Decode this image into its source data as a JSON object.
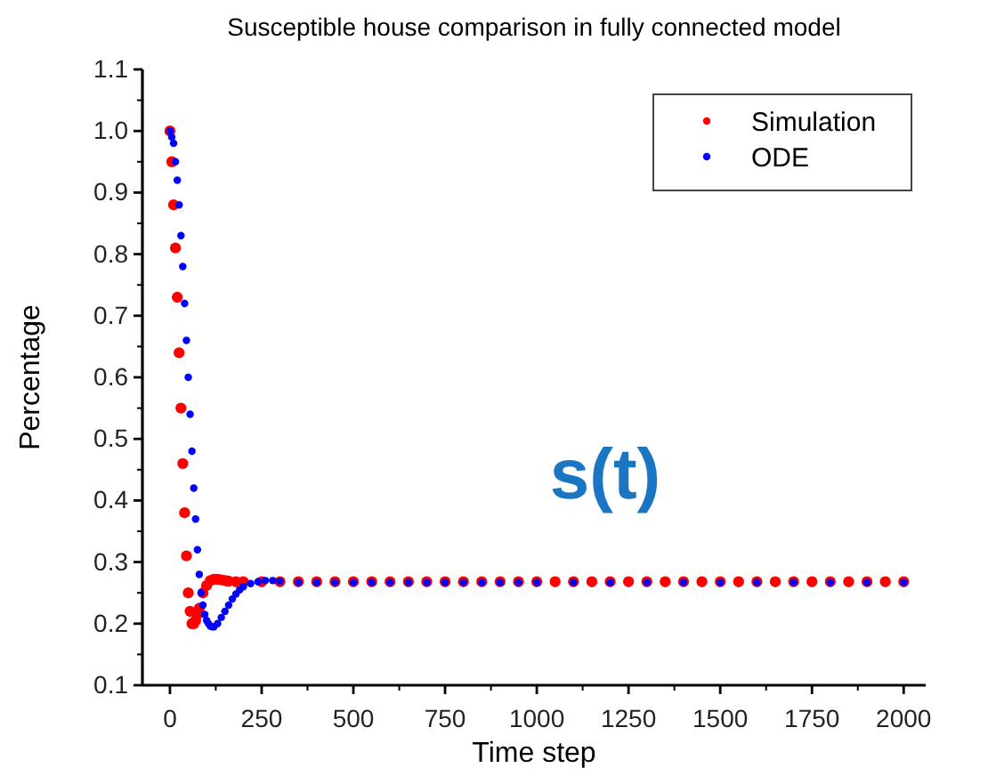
{
  "chart_data": {
    "type": "scatter",
    "title": "Susceptible house comparison in fully connected model",
    "xlabel": "Time step",
    "ylabel": "Percentage",
    "annotations": [
      "s(t)"
    ],
    "xlim": [
      -75,
      2060
    ],
    "xticks": [
      0,
      250,
      500,
      750,
      1000,
      1250,
      1500,
      1750,
      2000
    ],
    "ylim": [
      0.1,
      1.1
    ],
    "yticks": [
      {
        "value": 0.1,
        "label": "0.1"
      },
      {
        "value": 0.2,
        "label": "0.2"
      },
      {
        "value": 0.3,
        "label": "0.3"
      },
      {
        "value": 0.4,
        "label": "0.4"
      },
      {
        "value": 0.5,
        "label": "0.5"
      },
      {
        "value": 0.6,
        "label": "0.6"
      },
      {
        "value": 0.7,
        "label": "0.7"
      },
      {
        "value": 0.8,
        "label": "0.8"
      },
      {
        "value": 0.9,
        "label": "0.9"
      },
      {
        "value": 1.0,
        "label": "1.0"
      },
      {
        "value": 1.1,
        "label": "1.1"
      }
    ],
    "grid": false,
    "legend": "top right",
    "marker": "circle",
    "series": [
      {
        "name": "Simulation",
        "color": "#ff0000",
        "x": [
          0,
          5,
          10,
          15,
          20,
          25,
          30,
          35,
          40,
          45,
          50,
          55,
          60,
          65,
          70,
          75,
          80,
          90,
          100,
          110,
          120,
          130,
          140,
          150,
          160,
          180,
          200,
          250,
          300,
          350,
          400,
          450,
          500,
          550,
          600,
          650,
          700,
          750,
          800,
          850,
          900,
          950,
          1000,
          1050,
          1100,
          1150,
          1200,
          1250,
          1300,
          1350,
          1400,
          1450,
          1500,
          1550,
          1600,
          1650,
          1700,
          1750,
          1800,
          1850,
          1900,
          1950,
          2000
        ],
        "values": [
          1.0,
          0.95,
          0.88,
          0.81,
          0.73,
          0.64,
          0.55,
          0.46,
          0.38,
          0.31,
          0.25,
          0.22,
          0.2,
          0.2,
          0.205,
          0.215,
          0.225,
          0.25,
          0.262,
          0.27,
          0.272,
          0.272,
          0.271,
          0.27,
          0.269,
          0.268,
          0.268,
          0.268,
          0.268,
          0.268,
          0.268,
          0.268,
          0.268,
          0.268,
          0.268,
          0.268,
          0.268,
          0.268,
          0.268,
          0.268,
          0.268,
          0.268,
          0.268,
          0.268,
          0.268,
          0.268,
          0.268,
          0.268,
          0.268,
          0.268,
          0.268,
          0.268,
          0.268,
          0.268,
          0.268,
          0.268,
          0.268,
          0.268,
          0.268,
          0.268,
          0.268,
          0.268,
          0.268
        ]
      },
      {
        "name": "ODE",
        "color": "#0000ff",
        "x": [
          0,
          5,
          10,
          15,
          20,
          25,
          30,
          35,
          40,
          45,
          50,
          55,
          60,
          65,
          70,
          75,
          80,
          85,
          90,
          95,
          100,
          105,
          110,
          115,
          120,
          130,
          140,
          150,
          160,
          170,
          180,
          190,
          200,
          220,
          240,
          260,
          280,
          300,
          350,
          400,
          450,
          500,
          550,
          600,
          650,
          700,
          750,
          800,
          850,
          900,
          950,
          1000,
          1100,
          1200,
          1300,
          1400,
          1500,
          1600,
          1700,
          1800,
          1900,
          2000
        ],
        "values": [
          1.0,
          0.99,
          0.98,
          0.95,
          0.92,
          0.88,
          0.83,
          0.78,
          0.72,
          0.66,
          0.6,
          0.54,
          0.48,
          0.42,
          0.37,
          0.32,
          0.28,
          0.25,
          0.23,
          0.215,
          0.205,
          0.2,
          0.196,
          0.195,
          0.195,
          0.2,
          0.21,
          0.22,
          0.23,
          0.24,
          0.248,
          0.255,
          0.26,
          0.265,
          0.268,
          0.27,
          0.27,
          0.269,
          0.267,
          0.267,
          0.267,
          0.267,
          0.267,
          0.267,
          0.267,
          0.267,
          0.267,
          0.267,
          0.267,
          0.267,
          0.267,
          0.267,
          0.267,
          0.267,
          0.267,
          0.267,
          0.267,
          0.267,
          0.267,
          0.267,
          0.267,
          0.267
        ]
      }
    ]
  }
}
